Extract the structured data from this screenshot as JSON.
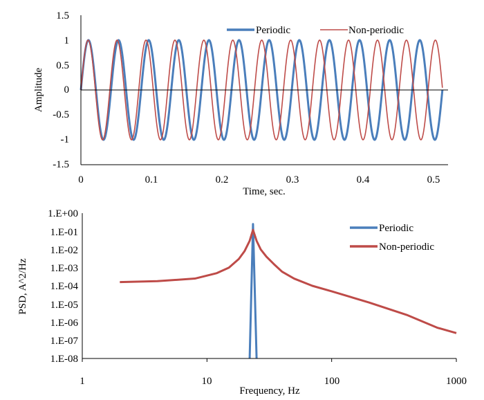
{
  "colors": {
    "periodic": "#4a7ebb",
    "nonperiodic": "#be4b48",
    "axis": "#000000"
  },
  "chart_data": [
    {
      "type": "line",
      "title": "",
      "xlabel": "Time, sec.",
      "ylabel": "Amplitude",
      "xlim": [
        0,
        0.52
      ],
      "ylim": [
        -1.5,
        1.5
      ],
      "xticks": [
        0,
        0.1,
        0.2,
        0.3,
        0.4,
        0.5
      ],
      "xtick_labels": [
        "0",
        "0.1",
        "0.2",
        "0.3",
        "0.4",
        "0.5"
      ],
      "yticks": [
        1.5,
        1,
        0.5,
        0,
        -0.5,
        -1,
        -1.5
      ],
      "ytick_labels": [
        "1.5",
        "1",
        "0.5",
        "0",
        "-0.5",
        "-1",
        "-1.5"
      ],
      "legend_position": "top-right",
      "series": [
        {
          "name": "Periodic",
          "kind": "sine",
          "frequency_hz": 23.4375,
          "amplitude": 1,
          "t_start": 0,
          "t_end": 0.512
        },
        {
          "name": "Non-periodic",
          "kind": "sine",
          "frequency_hz": 24.4,
          "amplitude": 1,
          "t_start": 0,
          "t_end": 0.512
        }
      ]
    },
    {
      "type": "line",
      "title": "",
      "xlabel": "Frequency, Hz",
      "ylabel": "PSD, A^2/Hz",
      "xscale": "log",
      "yscale": "log",
      "xlim": [
        1,
        1000
      ],
      "ylim": [
        1e-08,
        1
      ],
      "xtick_labels": [
        "1",
        "10",
        "100",
        "1000"
      ],
      "ytick_labels": [
        "1.E+00",
        "1.E-01",
        "1.E-02",
        "1.E-03",
        "1.E-04",
        "1.E-05",
        "1.E-06",
        "1.E-07",
        "1.E-08"
      ],
      "legend_position": "top-right",
      "series": [
        {
          "name": "Periodic",
          "x": [
            22,
            23.4,
            25
          ],
          "y": [
            1e-08,
            0.25,
            1e-08
          ]
        },
        {
          "name": "Non-periodic",
          "x": [
            2,
            4,
            8,
            12,
            15,
            18,
            20,
            22,
            23.4,
            25,
            27,
            30,
            35,
            40,
            50,
            70,
            100,
            200,
            400,
            700,
            1000
          ],
          "y": [
            0.00016,
            0.00018,
            0.00025,
            0.0005,
            0.001,
            0.003,
            0.008,
            0.03,
            0.12,
            0.03,
            0.01,
            0.004,
            0.0014,
            0.0006,
            0.00025,
            0.0001,
            5e-05,
            1.2e-05,
            2.5e-06,
            5e-07,
            2.5e-07
          ]
        }
      ]
    }
  ]
}
